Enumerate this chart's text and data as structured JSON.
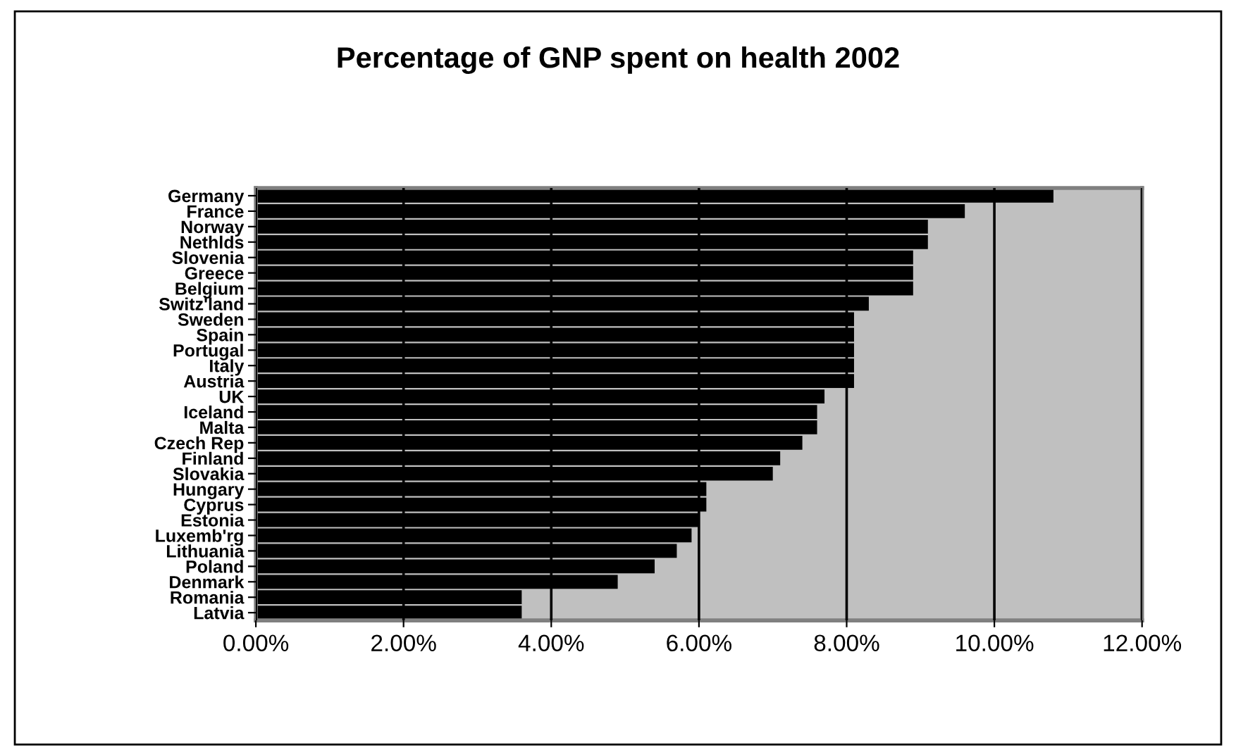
{
  "chart_data": {
    "type": "bar",
    "orientation": "horizontal",
    "title": "Percentage of GNP spent on health 2002",
    "categories": [
      "Germany",
      "France",
      "Norway",
      "Nethlds",
      "Slovenia",
      "Greece",
      "Belgium",
      "Switz'land",
      "Sweden",
      "Spain",
      "Portugal",
      "Italy",
      "Austria",
      "UK",
      "Iceland",
      "Malta",
      "Czech Rep",
      "Finland",
      "Slovakia",
      "Hungary",
      "Cyprus",
      "Estonia",
      "Luxemb'rg",
      "Lithuania",
      "Poland",
      "Denmark",
      "Romania",
      "Latvia"
    ],
    "values": [
      10.8,
      9.6,
      9.1,
      9.1,
      8.9,
      8.9,
      8.9,
      8.3,
      8.1,
      8.1,
      8.1,
      8.1,
      8.1,
      7.7,
      7.6,
      7.6,
      7.4,
      7.1,
      7.0,
      6.1,
      6.1,
      6.0,
      5.9,
      5.7,
      5.4,
      4.9,
      3.6,
      3.6
    ],
    "color": "#000000",
    "xlim": [
      0,
      12
    ],
    "xticks": [
      {
        "value": 0,
        "label": "0.00%"
      },
      {
        "value": 2,
        "label": "2.00%"
      },
      {
        "value": 4,
        "label": "4.00%"
      },
      {
        "value": 6,
        "label": "6.00%"
      },
      {
        "value": 8,
        "label": "8.00%"
      },
      {
        "value": 10,
        "label": "10.00%"
      },
      {
        "value": 12,
        "label": "12.00%"
      }
    ],
    "grid": "x"
  }
}
